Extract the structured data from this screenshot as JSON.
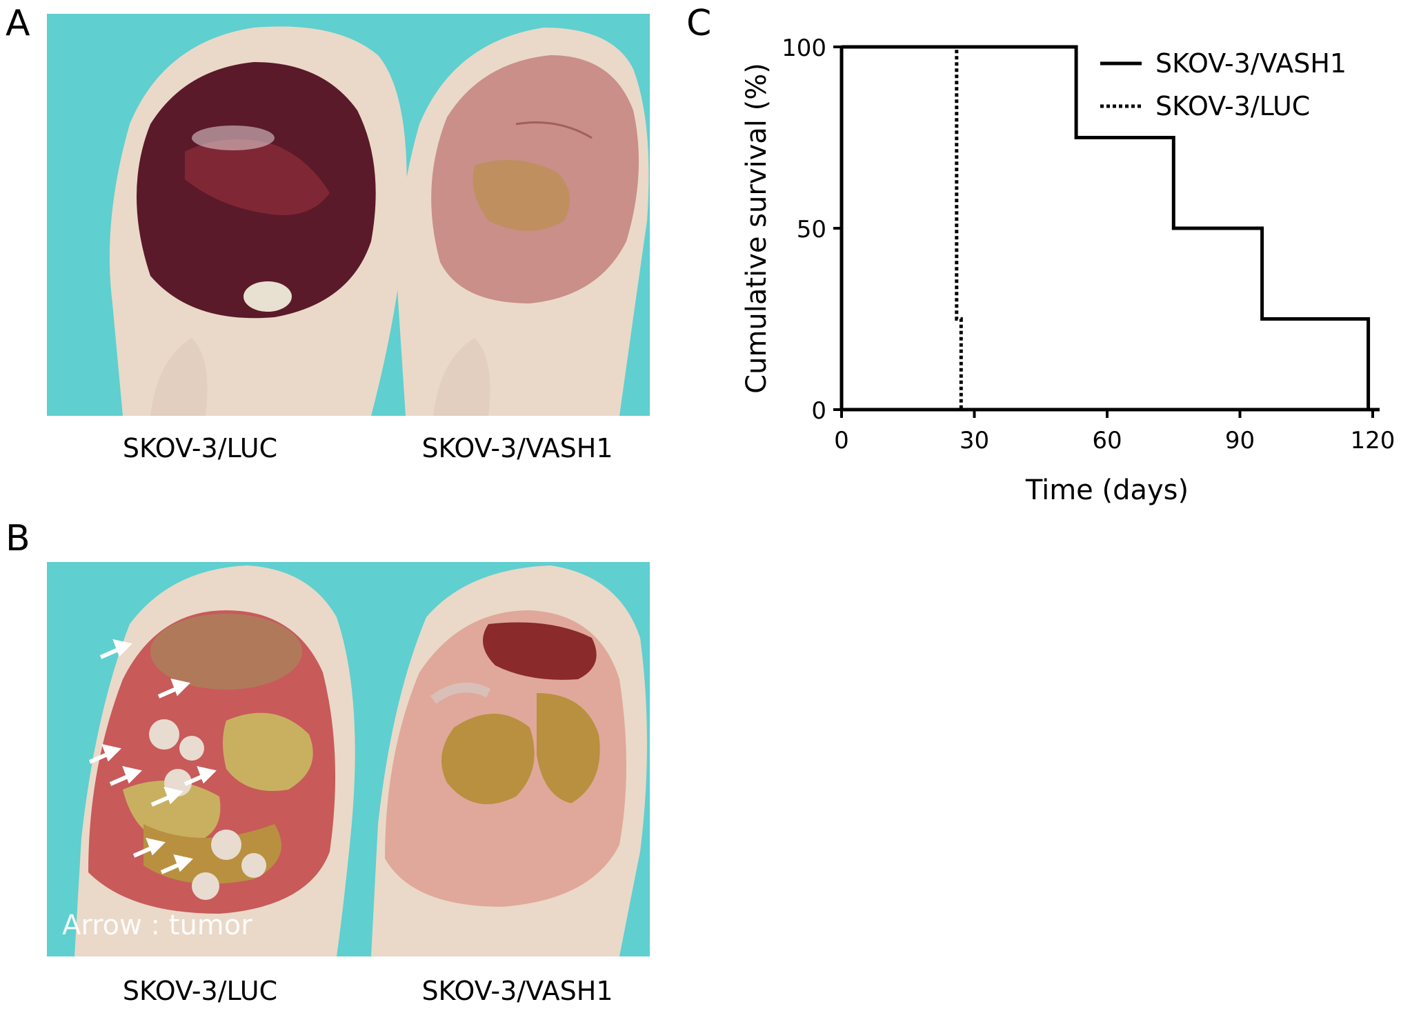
{
  "panels": {
    "a": {
      "letter": "A",
      "left_caption": "SKOV-3/LUC",
      "right_caption": "SKOV-3/VASH1"
    },
    "b": {
      "letter": "B",
      "left_caption": "SKOV-3/LUC",
      "right_caption": "SKOV-3/VASH1",
      "photo_note": "Arrow : tumor"
    },
    "c": {
      "letter": "C"
    }
  },
  "colors": {
    "photo_background": "#5fcfcf",
    "skin": "#ead9c8",
    "bloody_abdomen": "#5a1a2a",
    "pale_abdomen": "#c98f88",
    "intestine": "#b89040",
    "liver": "#8a2a2a",
    "tumor_arrow": "#ffffff"
  },
  "chart_data": {
    "type": "line",
    "xlabel": "Time (days)",
    "ylabel": "Cumulative survival (%)",
    "xlim": [
      0,
      120
    ],
    "ylim": [
      0,
      100
    ],
    "xticks": [
      0,
      30,
      60,
      90,
      120
    ],
    "yticks": [
      0,
      50,
      100
    ],
    "legend_position": "top-right",
    "series": [
      {
        "name": "SKOV-3/VASH1",
        "style": "solid",
        "points": [
          [
            0,
            100
          ],
          [
            53,
            100
          ],
          [
            53,
            75
          ],
          [
            75,
            75
          ],
          [
            75,
            50
          ],
          [
            95,
            50
          ],
          [
            95,
            25
          ],
          [
            119,
            25
          ],
          [
            119,
            0
          ]
        ]
      },
      {
        "name": "SKOV-3/LUC",
        "style": "dotted",
        "points": [
          [
            0,
            100
          ],
          [
            26,
            100
          ],
          [
            26,
            25
          ],
          [
            27,
            25
          ],
          [
            27,
            0
          ]
        ]
      }
    ]
  }
}
